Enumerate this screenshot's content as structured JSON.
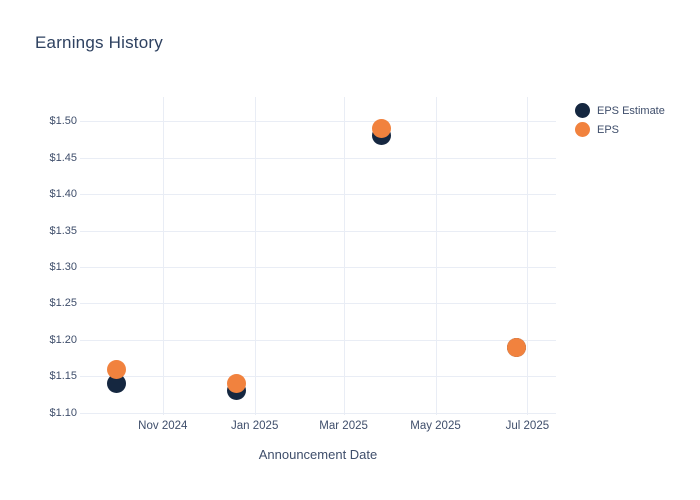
{
  "chart_data": {
    "type": "scatter",
    "title": "Earnings History",
    "xlabel": "Announcement Date",
    "ylabel": "",
    "grid": true,
    "legend_position": "outside-top-right",
    "background_color": "#ffffff",
    "grid_color": "#e9edf5",
    "title_color": "#2e4160",
    "tick_color": "#3f4e6b",
    "xlim": [
      "2024-09-07",
      "2025-07-20"
    ],
    "ylim": [
      1.097,
      1.533
    ],
    "x_ticks": [
      {
        "label": "Nov 2024",
        "date": "2024-11-01"
      },
      {
        "label": "Jan 2025",
        "date": "2025-01-01"
      },
      {
        "label": "Mar 2025",
        "date": "2025-03-01"
      },
      {
        "label": "May 2025",
        "date": "2025-05-01"
      },
      {
        "label": "Jul 2025",
        "date": "2025-07-01"
      }
    ],
    "y_ticks": [
      {
        "label": "$1.10",
        "value": 1.1
      },
      {
        "label": "$1.15",
        "value": 1.15
      },
      {
        "label": "$1.20",
        "value": 1.2
      },
      {
        "label": "$1.25",
        "value": 1.25
      },
      {
        "label": "$1.30",
        "value": 1.3
      },
      {
        "label": "$1.35",
        "value": 1.35
      },
      {
        "label": "$1.40",
        "value": 1.4
      },
      {
        "label": "$1.45",
        "value": 1.45
      },
      {
        "label": "$1.50",
        "value": 1.5
      }
    ],
    "series": [
      {
        "name": "EPS Estimate",
        "color": "#152740",
        "points": [
          {
            "x": "2024-10-01",
            "y": 1.14
          },
          {
            "x": "2024-12-20",
            "y": 1.13
          },
          {
            "x": "2025-03-26",
            "y": 1.48
          },
          {
            "x": "2025-06-24",
            "y": 1.19
          }
        ]
      },
      {
        "name": "EPS",
        "color": "#f1823e",
        "points": [
          {
            "x": "2024-10-01",
            "y": 1.16
          },
          {
            "x": "2024-12-20",
            "y": 1.14
          },
          {
            "x": "2025-03-26",
            "y": 1.49
          },
          {
            "x": "2025-06-24",
            "y": 1.19
          }
        ]
      }
    ]
  }
}
